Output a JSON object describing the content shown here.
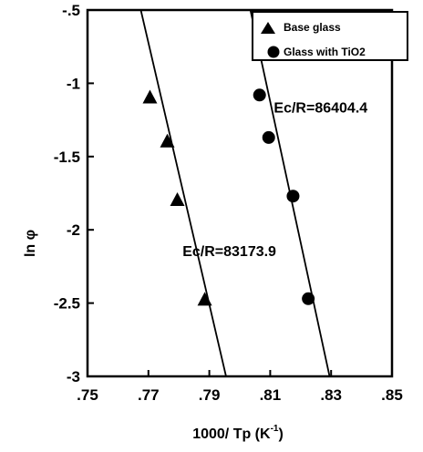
{
  "chart_data": {
    "type": "scatter",
    "xlabel": "1000/ Tp (K",
    "xlabel_sup": "-1",
    "ylabel": "ln φ",
    "xlim": [
      0.75,
      0.85
    ],
    "ylim": [
      -3,
      -0.5
    ],
    "x_ticks": [
      {
        "value": 0.75,
        "label": ".75"
      },
      {
        "value": 0.77,
        "label": ".77"
      },
      {
        "value": 0.79,
        "label": ".79"
      },
      {
        "value": 0.81,
        "label": ".81"
      },
      {
        "value": 0.83,
        "label": ".83"
      },
      {
        "value": 0.85,
        "label": ".85"
      }
    ],
    "y_ticks": [
      {
        "value": -0.5,
        "label": "-.5"
      },
      {
        "value": -1,
        "label": "-1"
      },
      {
        "value": -1.5,
        "label": "-1.5"
      },
      {
        "value": -2,
        "label": "-2"
      },
      {
        "value": -2.5,
        "label": "-2.5"
      },
      {
        "value": -3,
        "label": "-3"
      }
    ],
    "grid": false,
    "legend_position": "top-right",
    "series": [
      {
        "name": "Base glass",
        "marker": "triangle",
        "color": "#000000",
        "points": [
          [
            0.7705,
            -1.1
          ],
          [
            0.7762,
            -1.4
          ],
          [
            0.7795,
            -1.8
          ],
          [
            0.7885,
            -2.48
          ]
        ],
        "fit_line": [
          [
            0.7675,
            -0.5
          ],
          [
            0.7955,
            -3.0
          ]
        ]
      },
      {
        "name": "Glass with TiO2",
        "marker": "circle",
        "color": "#000000",
        "points": [
          [
            0.8065,
            -1.08
          ],
          [
            0.8095,
            -1.37
          ],
          [
            0.8175,
            -1.77
          ],
          [
            0.8225,
            -2.47
          ]
        ],
        "fit_line": [
          [
            0.8035,
            -0.5
          ],
          [
            0.8295,
            -3.0
          ]
        ]
      }
    ],
    "annotations": [
      {
        "text": "Ec/R=86404.4",
        "x": 0.8112,
        "y": -1.2
      },
      {
        "text": "Ec/R=83173.9",
        "x": 0.7812,
        "y": -2.18
      }
    ]
  }
}
